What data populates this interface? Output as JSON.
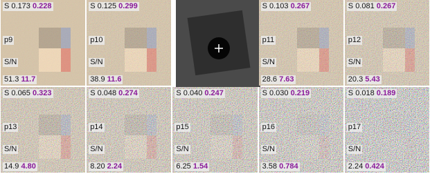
{
  "tiles": [
    {
      "label": "p9",
      "s": "S 0.173",
      "s_value": "0.228",
      "sn": "S/N",
      "snr": "51.3",
      "snr_value": "11.7"
    },
    {
      "label": "p10",
      "s": "S 0.125",
      "s_value": "0.299",
      "sn": "S/N",
      "snr": "38.9",
      "snr_value": "11.6"
    },
    {
      "label": "p11",
      "s": "S 0.103",
      "s_value": "0.267",
      "sn": "S/N",
      "snr": "28.6",
      "snr_value": "7.63"
    },
    {
      "label": "p12",
      "s": "S 0.081",
      "s_value": "0.267",
      "sn": "S/N",
      "snr": "20.3",
      "snr_value": "5.43"
    },
    {
      "label": "p13",
      "s": "S 0.065",
      "s_value": "0.323",
      "sn": "S/N",
      "snr": "14.9",
      "snr_value": "4.80"
    },
    {
      "label": "p14",
      "s": "S 0.048",
      "s_value": "0.274",
      "sn": "S/N",
      "snr": "8.20",
      "snr_value": "2.24"
    },
    {
      "label": "p15",
      "s": "S 0.040",
      "s_value": "0.247",
      "sn": "S/N",
      "snr": "6.25",
      "snr_value": "1.54"
    },
    {
      "label": "p16",
      "s": "S 0.030",
      "s_value": "0.219",
      "sn": "S/N",
      "snr": "3.58",
      "snr_value": "0.784"
    },
    {
      "label": "p17",
      "s": "S 0.018",
      "s_value": "0.189",
      "sn": "S/N",
      "snr": "2.24",
      "snr_value": "0.424"
    }
  ]
}
